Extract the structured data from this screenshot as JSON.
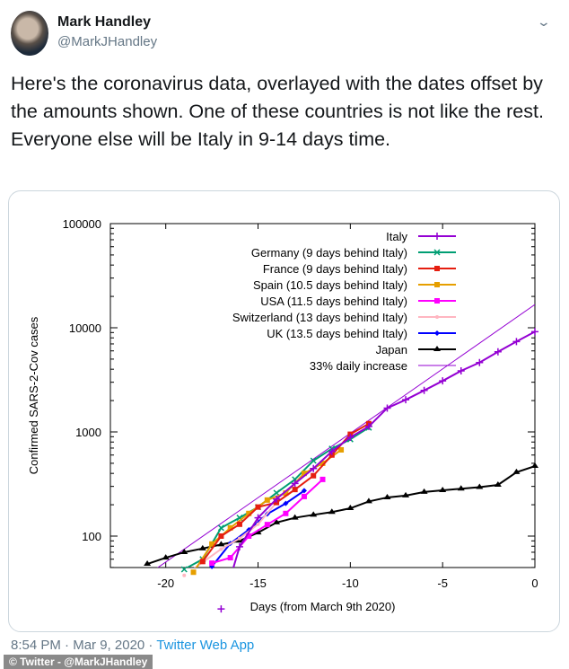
{
  "user": {
    "name": "Mark Handley",
    "handle": "@MarkJHandley"
  },
  "tweet": {
    "text": "Here's the coronavirus data, overlayed with the dates offset by the amounts shown.  One of these countries is not like the rest.  Everyone else will be Italy in 9-14 days time.",
    "time": "8:54 PM",
    "sep1": " · ",
    "date": "Mar 9, 2020",
    "sep2": " · ",
    "source": "Twitter Web App"
  },
  "watermark": "© Twitter - @MarkJHandley",
  "chart_data": {
    "type": "line",
    "xlabel": "Days (from March 9th 2020)",
    "ylabel": "Confirmed SARS-2-Cov cases",
    "xlim": [
      -23,
      0
    ],
    "ylim": [
      50,
      100000
    ],
    "yscale": "log",
    "xticks": [
      -20,
      -15,
      -10,
      -5,
      0
    ],
    "yticks": [
      100,
      1000,
      10000,
      100000
    ],
    "legend_position": "top-right",
    "series": [
      {
        "name": "Italy",
        "color": "#9400d3",
        "marker": "plus",
        "points": [
          [
            -17,
            20
          ],
          [
            -16,
            79
          ],
          [
            -15,
            150
          ],
          [
            -14,
            227
          ],
          [
            -13,
            320
          ],
          [
            -12,
            445
          ],
          [
            -11,
            650
          ],
          [
            -10,
            888
          ],
          [
            -9,
            1128
          ],
          [
            -8,
            1694
          ],
          [
            -7,
            2036
          ],
          [
            -6,
            2502
          ],
          [
            -5,
            3089
          ],
          [
            -4,
            3858
          ],
          [
            -3,
            4636
          ],
          [
            -2,
            5883
          ],
          [
            -1,
            7375
          ],
          [
            0,
            9172
          ]
        ]
      },
      {
        "name": "Germany (9 days behind Italy)",
        "color": "#009e73",
        "marker": "x",
        "points": [
          [
            -19,
            48
          ],
          [
            -18,
            60
          ],
          [
            -17,
            120
          ],
          [
            -16,
            150
          ],
          [
            -15,
            190
          ],
          [
            -14,
            260
          ],
          [
            -13,
            350
          ],
          [
            -12,
            530
          ],
          [
            -11,
            690
          ],
          [
            -10,
            850
          ],
          [
            -9,
            1100
          ]
        ]
      },
      {
        "name": "France (9 days behind Italy)",
        "color": "#e51e10",
        "marker": "square",
        "points": [
          [
            -18,
            57
          ],
          [
            -17,
            100
          ],
          [
            -16,
            130
          ],
          [
            -15,
            190
          ],
          [
            -14,
            210
          ],
          [
            -13,
            280
          ],
          [
            -12,
            380
          ],
          [
            -11,
            600
          ],
          [
            -10,
            950
          ],
          [
            -9,
            1200
          ]
        ]
      },
      {
        "name": "Spain (10.5 days behind Italy)",
        "color": "#e69f00",
        "marker": "square",
        "points": [
          [
            -18.5,
            45
          ],
          [
            -17.5,
            84
          ],
          [
            -16.5,
            120
          ],
          [
            -15.5,
            165
          ],
          [
            -14.5,
            222
          ],
          [
            -13.5,
            259
          ],
          [
            -12.5,
            400
          ],
          [
            -11.5,
            500
          ],
          [
            -10.5,
            673
          ]
        ]
      },
      {
        "name": "USA (11.5 days behind Italy)",
        "color": "#ff00ff",
        "marker": "square",
        "points": [
          [
            -17.5,
            55
          ],
          [
            -16.5,
            62
          ],
          [
            -15.5,
            100
          ],
          [
            -14.5,
            129
          ],
          [
            -13.5,
            165
          ],
          [
            -12.5,
            240
          ],
          [
            -11.5,
            350
          ]
        ]
      },
      {
        "name": "Switzerland (13 days behind Italy)",
        "color": "#ffb6c1",
        "marker": "dot",
        "points": [
          [
            -19,
            42
          ],
          [
            -18,
            56
          ],
          [
            -17,
            75
          ],
          [
            -16,
            95
          ],
          [
            -15,
            130
          ],
          [
            -14,
            210
          ],
          [
            -13,
            280
          ]
        ]
      },
      {
        "name": "UK (13.5 days behind Italy)",
        "color": "#0000ff",
        "marker": "diamond",
        "points": [
          [
            -17.5,
            51
          ],
          [
            -16.5,
            85
          ],
          [
            -15.5,
            115
          ],
          [
            -14.5,
            163
          ],
          [
            -13.5,
            206
          ],
          [
            -12.5,
            273
          ]
        ]
      },
      {
        "name": "Japan",
        "color": "#000000",
        "marker": "triangle",
        "points": [
          [
            -21,
            54
          ],
          [
            -20,
            62
          ],
          [
            -19,
            70
          ],
          [
            -18,
            76
          ],
          [
            -17,
            83
          ],
          [
            -16,
            90
          ],
          [
            -15,
            108
          ],
          [
            -14,
            135
          ],
          [
            -13,
            150
          ],
          [
            -12,
            160
          ],
          [
            -11,
            170
          ],
          [
            -10,
            185
          ],
          [
            -9,
            215
          ],
          [
            -8,
            235
          ],
          [
            -7,
            245
          ],
          [
            -6,
            265
          ],
          [
            -5,
            275
          ],
          [
            -4,
            285
          ],
          [
            -3,
            295
          ],
          [
            -2,
            310
          ],
          [
            -1,
            410
          ],
          [
            0,
            470
          ]
        ]
      },
      {
        "name": "33% daily increase",
        "color": "#9400d3",
        "marker": "none",
        "thin": true,
        "points": [
          [
            -23,
            24
          ],
          [
            0,
            16700
          ]
        ]
      }
    ]
  }
}
